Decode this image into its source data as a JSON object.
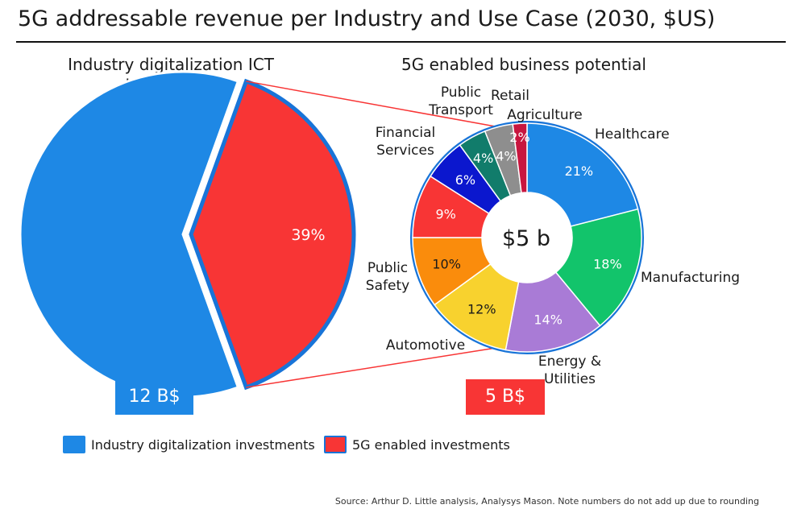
{
  "title": "5G addressable revenue per Industry and Use Case (2030, $US)",
  "source": "Source: Arthur D. Little analysis, Analysys Mason. Note numbers do not add up due to rounding",
  "colors": {
    "blue": "#1E88E5",
    "red": "#F83535",
    "outline": "#1874D8"
  },
  "chart_data": [
    {
      "type": "pie",
      "title": "Industry digitalization ICT investment",
      "total_label": "12 B$",
      "slices": [
        {
          "name": "Industry digitalization investments",
          "value": 61,
          "label": "",
          "color": "#1E88E5"
        },
        {
          "name": "5G enabled investments",
          "value": 39,
          "label": "39%",
          "color": "#F83535"
        }
      ],
      "legend": {
        "placement": "bottom",
        "entries": [
          {
            "label": "Industry digitalization investments",
            "color": "#1E88E5"
          },
          {
            "label": "5G enabled investments",
            "color": "#F83535"
          }
        ]
      }
    },
    {
      "type": "pie",
      "variant": "donut",
      "title": "5G enabled business potential",
      "center_label": "$5 b",
      "total_label": "5 B$",
      "slices": [
        {
          "name": "Healthcare",
          "value": 21,
          "label": "21%",
          "color": "#1E88E5"
        },
        {
          "name": "Manufacturing",
          "value": 18,
          "label": "18%",
          "color": "#12C46B"
        },
        {
          "name": "Energy & Utilities",
          "value": 14,
          "label": "14%",
          "color": "#A97BD6"
        },
        {
          "name": "Automotive",
          "value": 12,
          "label": "12%",
          "color": "#F8D22E"
        },
        {
          "name": "Public Safety",
          "value": 10,
          "label": "10%",
          "color": "#FA8C0C"
        },
        {
          "name": "Financial Services",
          "value": 9,
          "label": "9%",
          "color": "#F83535"
        },
        {
          "name": "Public Transport",
          "value": 6,
          "label": "6%",
          "color": "#0B17CE"
        },
        {
          "name": "Retail",
          "value": 4,
          "label": "4%",
          "color": "#117C6B"
        },
        {
          "name": "Agriculture",
          "value": 4,
          "label": "4%",
          "color": "#8E8E8E"
        },
        {
          "name": "",
          "value": 2,
          "label": "2%",
          "color": "#C8163F"
        }
      ]
    }
  ]
}
